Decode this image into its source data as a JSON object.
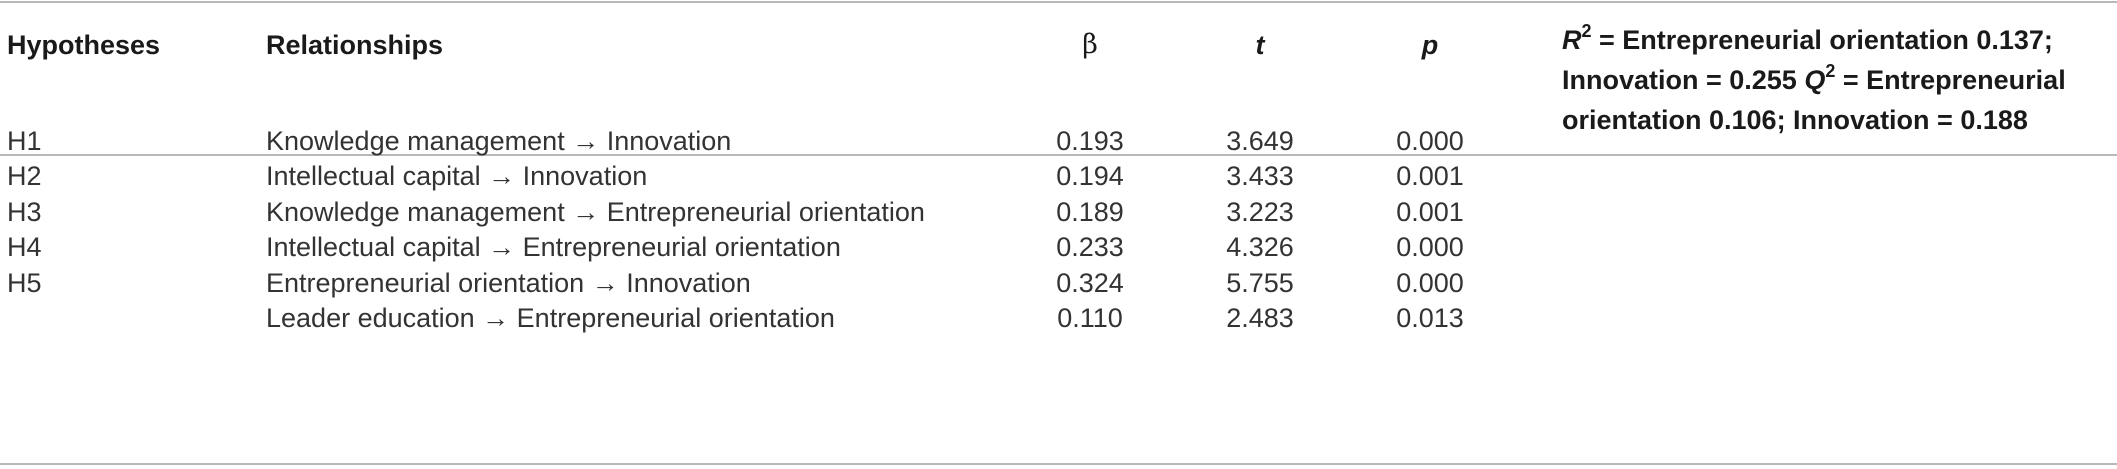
{
  "table": {
    "headers": {
      "hypotheses": "Hypotheses",
      "relationships": "Relationships",
      "beta": "β",
      "t": "t",
      "p": "p",
      "note": {
        "r_symbol": "R",
        "r_sup": "2",
        "r_text": " = Entrepreneurial orientation 0.137; Innovation = 0.255 ",
        "q_symbol": "Q",
        "q_sup": "2",
        "q_text": " = Entrepreneurial orientation 0.106; Innovation = 0.188"
      }
    },
    "rows": [
      {
        "hyp": "H1",
        "rel": "Knowledge management → Innovation",
        "beta": "0.193",
        "t": "3.649",
        "p": "0.000"
      },
      {
        "hyp": "H2",
        "rel": "Intellectual capital → Innovation",
        "beta": "0.194",
        "t": "3.433",
        "p": "0.001"
      },
      {
        "hyp": "H3",
        "rel": "Knowledge management → Entrepreneurial orientation",
        "beta": "0.189",
        "t": "3.223",
        "p": "0.001"
      },
      {
        "hyp": "H4",
        "rel": "Intellectual capital → Entrepreneurial orientation",
        "beta": "0.233",
        "t": "4.326",
        "p": "0.000"
      },
      {
        "hyp": "H5",
        "rel": "Entrepreneurial orientation → Innovation",
        "beta": "0.324",
        "t": "5.755",
        "p": "0.000"
      },
      {
        "hyp": "",
        "rel": "Leader education → Entrepreneurial orientation",
        "beta": "0.110",
        "t": "2.483",
        "p": "0.013"
      }
    ]
  }
}
